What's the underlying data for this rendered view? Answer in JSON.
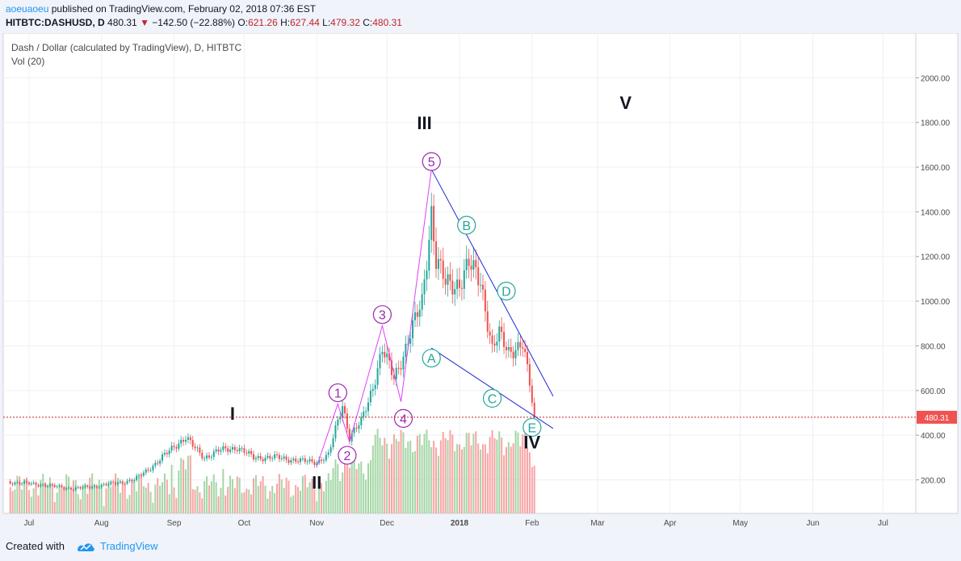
{
  "header": {
    "user": "aoeuaoeu",
    "published_text": "published on TradingView.com, February 02, 2018 07:36 EST",
    "symbol": "HITBTC:DASHUSD, D",
    "last": "480.31",
    "change_arrow": "▼",
    "change": "−142.50 (−22.88%)",
    "o_label": "O:",
    "o": "621.26",
    "h_label": "H:",
    "h": "627.44",
    "l_label": "L:",
    "l": "479.32",
    "c_label": "C:",
    "c": "480.31"
  },
  "footer": {
    "created_with": "Created with",
    "brand": "TradingView",
    "logo_icon": "tradingview-logo-icon"
  },
  "chart_data": {
    "type": "candlestick",
    "title": "Dash / Dollar (calculated by TradingView), D, HITBTC",
    "subtitle": "Vol (20)",
    "y_ticks": [
      200,
      400,
      600,
      800,
      1000,
      1200,
      1400,
      1600,
      1800,
      2000
    ],
    "y_tick_labels": [
      "200.00",
      "400.00",
      "600.00",
      "800.00",
      "1000.00",
      "1200.00",
      "1400.00",
      "1600.00",
      "1800.00",
      "2000.00"
    ],
    "ylim": [
      50,
      2200
    ],
    "x_ticks": [
      "Jul",
      "Aug",
      "Sep",
      "Oct",
      "Nov",
      "Dec",
      "2018",
      "Feb",
      "Mar",
      "Apr",
      "May",
      "Jun",
      "Jul"
    ],
    "x_tick_dates": [
      "2017-07-01",
      "2017-08-01",
      "2017-09-01",
      "2017-10-01",
      "2017-11-01",
      "2017-12-01",
      "2018-01-01",
      "2018-02-01",
      "2018-03-01",
      "2018-04-01",
      "2018-05-01",
      "2018-06-01",
      "2018-07-01"
    ],
    "xlim": [
      "2017-06-20",
      "2018-07-15"
    ],
    "last_price": 480.31,
    "last_price_label": "480.31",
    "colors": {
      "up": "#26a69a",
      "down": "#ef5350",
      "vol_up": "#a5d6a7",
      "vol_down": "#f8a5a5",
      "impulse": "#e040fb",
      "triangle": "#1e2bd8",
      "purple_label": "#9c27b0",
      "teal_label": "#26a69a",
      "price_line": "#c0252c"
    },
    "price_path": [
      [
        "2017-06-22",
        190
      ],
      [
        "2017-07-05",
        180
      ],
      [
        "2017-07-20",
        160
      ],
      [
        "2017-08-01",
        175
      ],
      [
        "2017-08-15",
        200
      ],
      [
        "2017-08-25",
        280
      ],
      [
        "2017-09-01",
        350
      ],
      [
        "2017-09-06",
        390
      ],
      [
        "2017-09-10",
        340
      ],
      [
        "2017-09-14",
        300
      ],
      [
        "2017-09-20",
        330
      ],
      [
        "2017-09-28",
        345
      ],
      [
        "2017-10-05",
        300
      ],
      [
        "2017-10-15",
        300
      ],
      [
        "2017-10-25",
        285
      ],
      [
        "2017-11-01",
        280
      ],
      [
        "2017-11-06",
        310
      ],
      [
        "2017-11-12",
        540
      ],
      [
        "2017-11-15",
        390
      ],
      [
        "2017-11-20",
        460
      ],
      [
        "2017-11-25",
        620
      ],
      [
        "2017-11-29",
        780
      ],
      [
        "2017-12-04",
        660
      ],
      [
        "2017-12-08",
        760
      ],
      [
        "2017-12-12",
        880
      ],
      [
        "2017-12-16",
        1000
      ],
      [
        "2017-12-20",
        1400
      ],
      [
        "2017-12-22",
        1180
      ],
      [
        "2017-12-26",
        1080
      ],
      [
        "2018-01-01",
        1080
      ],
      [
        "2018-01-05",
        1160
      ],
      [
        "2018-01-10",
        1100
      ],
      [
        "2018-01-15",
        780
      ],
      [
        "2018-01-18",
        850
      ],
      [
        "2018-01-22",
        780
      ],
      [
        "2018-01-28",
        800
      ],
      [
        "2018-01-31",
        630
      ],
      [
        "2018-02-02",
        480
      ]
    ],
    "impulse_waves": [
      {
        "x": "2017-11-01",
        "y": 260
      },
      {
        "x": "2017-11-10",
        "y": 540
      },
      {
        "x": "2017-11-15",
        "y": 370
      },
      {
        "x": "2017-11-29",
        "y": 890
      },
      {
        "x": "2017-12-07",
        "y": 550
      },
      {
        "x": "2017-12-20",
        "y": 1590
      }
    ],
    "wave_labels_purple": [
      {
        "text": "1",
        "x": "2017-11-10",
        "y": 590
      },
      {
        "text": "2",
        "x": "2017-11-14",
        "y": 310
      },
      {
        "text": "3",
        "x": "2017-11-29",
        "y": 940
      },
      {
        "text": "4",
        "x": "2017-12-08",
        "y": 475
      },
      {
        "text": "5",
        "x": "2017-12-20",
        "y": 1625
      }
    ],
    "triangle_lines": [
      {
        "from": {
          "x": "2017-12-20",
          "y": 1590
        },
        "to": {
          "x": "2018-02-10",
          "y": 575
        }
      },
      {
        "from": {
          "x": "2017-12-20",
          "y": 790
        },
        "to": {
          "x": "2018-02-10",
          "y": 430
        }
      }
    ],
    "wave_labels_teal": [
      {
        "text": "A",
        "x": "2017-12-20",
        "y": 745
      },
      {
        "text": "B",
        "x": "2018-01-04",
        "y": 1340
      },
      {
        "text": "C",
        "x": "2018-01-15",
        "y": 565
      },
      {
        "text": "D",
        "x": "2018-01-21",
        "y": 1045
      },
      {
        "text": "E",
        "x": "2018-02-01",
        "y": 435
      }
    ],
    "degree_labels": [
      {
        "text": "I",
        "x": "2017-09-26",
        "y": 470
      },
      {
        "text": "II",
        "x": "2017-11-01",
        "y": 160
      },
      {
        "text": "III",
        "x": "2017-12-17",
        "y": 1770
      },
      {
        "text": "IV",
        "x": "2018-02-01",
        "y": 340
      },
      {
        "text": "V",
        "x": "2018-03-13",
        "y": 1860
      }
    ]
  }
}
